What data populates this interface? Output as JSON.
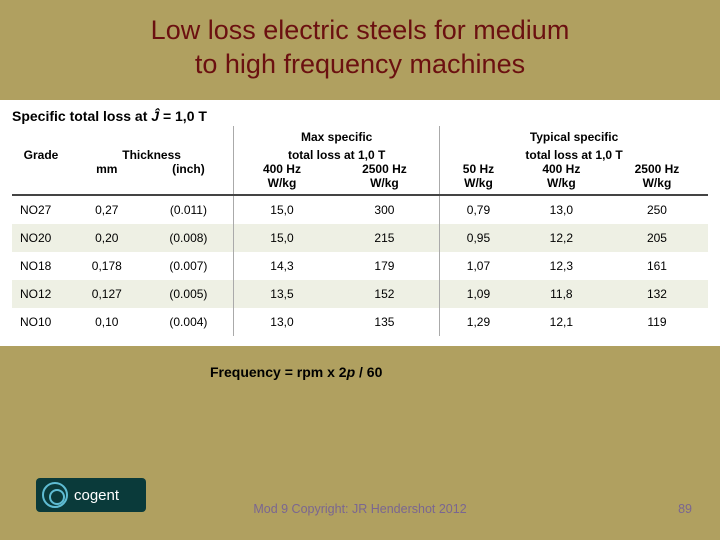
{
  "slide": {
    "title_line1": "Low loss electric steels for medium",
    "title_line2": "to high frequency  machines",
    "caption_prefix": "Specific total loss at ",
    "caption_equals": " = 1,0 T",
    "formula_prefix": "Frequency = rpm x 2",
    "formula_p": "p",
    "formula_suffix": " / 60",
    "logo_text": "cogent",
    "copyright": "Mod 9 Copyright: JR Hendershot 2012",
    "page_number": "89"
  },
  "table": {
    "headers": {
      "grade": "Grade",
      "thickness": "Thickness",
      "grp1_title_l1": "Max specific",
      "grp1_title_l2": "total loss at 1,0 T",
      "grp2_title_l1": "Typical specific",
      "grp2_title_l2": "total loss at 1,0 T",
      "mm": "mm",
      "inch": "(inch)",
      "f400": "400 Hz",
      "f2500": "2500 Hz",
      "f50": "50 Hz",
      "wkg": "W/kg"
    },
    "rows": [
      {
        "grade": "NO27",
        "mm": "0,27",
        "inch": "(0.011)",
        "m400": "15,0",
        "m2500": "300",
        "t50": "0,79",
        "t400": "13,0",
        "t2500": "250"
      },
      {
        "grade": "NO20",
        "mm": "0,20",
        "inch": "(0.008)",
        "m400": "15,0",
        "m2500": "215",
        "t50": "0,95",
        "t400": "12,2",
        "t2500": "205"
      },
      {
        "grade": "NO18",
        "mm": "0,178",
        "inch": "(0.007)",
        "m400": "14,3",
        "m2500": "179",
        "t50": "1,07",
        "t400": "12,3",
        "t2500": "161"
      },
      {
        "grade": "NO12",
        "mm": "0,127",
        "inch": "(0.005)",
        "m400": "13,5",
        "m2500": "152",
        "t50": "1,09",
        "t400": "11,8",
        "t2500": "132"
      },
      {
        "grade": "NO10",
        "mm": "0,10",
        "inch": "(0.004)",
        "m400": "13,0",
        "m2500": "135",
        "t50": "1,29",
        "t400": "12,1",
        "t2500": "119"
      }
    ]
  },
  "style": {
    "bg": "#b0a060",
    "title_color": "#6b1010",
    "row_alt": "#eef0e4",
    "footer_color": "#7a6691",
    "logo_bg": "#0a3a3a",
    "logo_accent": "#5fbcd3"
  }
}
